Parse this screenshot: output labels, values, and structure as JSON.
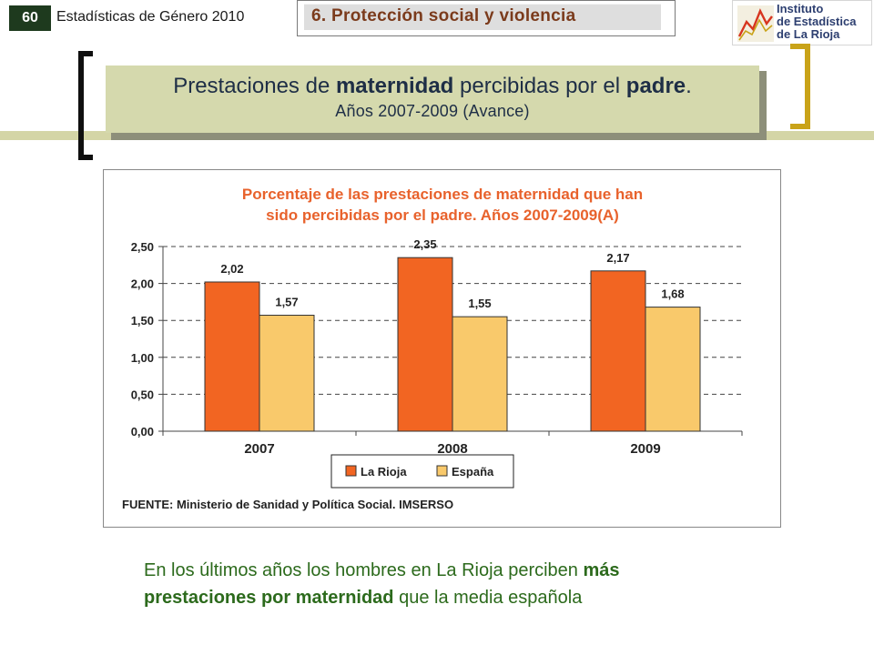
{
  "header": {
    "page_number": "60",
    "series_title": "Estadísticas de Género 2010",
    "section": "6. Protección social y violencia",
    "logo_lines": [
      "Instituto",
      "de Estadística",
      "de La Rioja"
    ]
  },
  "title": {
    "part1": "Prestaciones de ",
    "bold1": "maternidad",
    "part2": " percibidas por el ",
    "bold2": "padre",
    "part3": ".",
    "line2": "Años 2007-2009 (Avance)"
  },
  "chart_data": {
    "type": "bar",
    "title_lines": [
      "Porcentaje de las prestaciones de maternidad que han",
      "sido percibidas por el padre. Años 2007-2009(A)"
    ],
    "categories": [
      "2007",
      "2008",
      "2009"
    ],
    "series": [
      {
        "name": "La Rioja",
        "values": [
          2.02,
          2.35,
          2.17
        ],
        "labels": [
          "2,02",
          "2,35",
          "2,17"
        ],
        "color": "#f26522"
      },
      {
        "name": "España",
        "values": [
          1.57,
          1.55,
          1.68
        ],
        "labels": [
          "1,57",
          "1,55",
          "1,68"
        ],
        "color": "#f9c96b"
      }
    ],
    "ylim": [
      0,
      2.5
    ],
    "yticks": [
      0,
      0.5,
      1.0,
      1.5,
      2.0,
      2.5
    ],
    "ytick_labels": [
      "0,00",
      "0,50",
      "1,00",
      "1,50",
      "2,00",
      "2,50"
    ],
    "grid": "dashed horizontal",
    "legend_position": "bottom",
    "source": "FUENTE: Ministerio de Sanidad y Política Social. IMSERSO",
    "title_color": "#e8622c"
  },
  "footnote": {
    "part1": "En los últimos años los hombres en La Rioja perciben ",
    "bold1": "más",
    "bold2": "prestaciones por maternidad",
    "part2": " que la media española"
  }
}
